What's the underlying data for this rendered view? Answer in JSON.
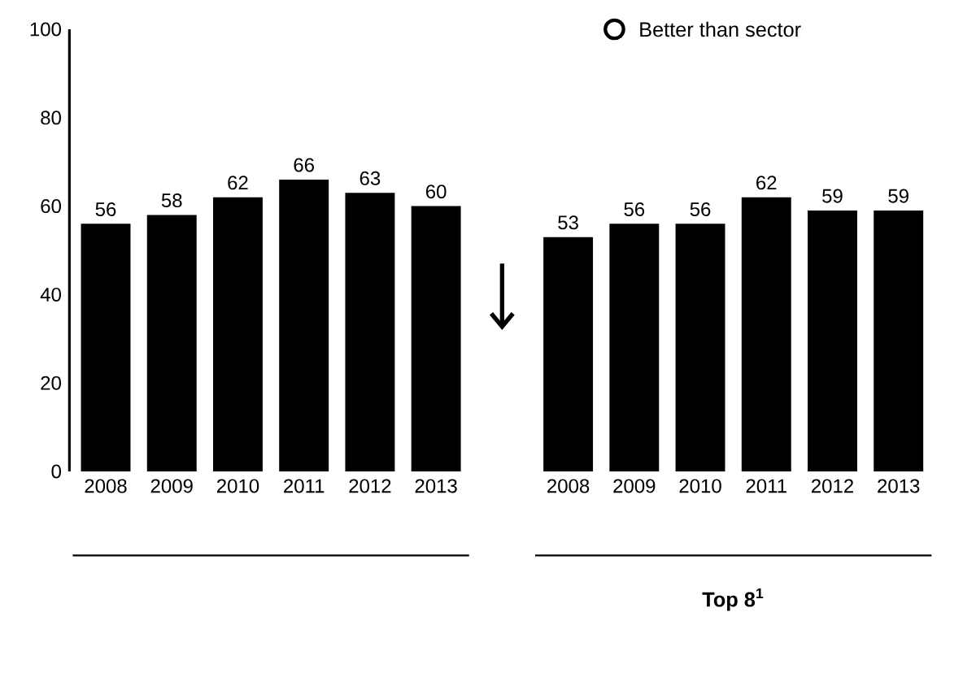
{
  "chart_data": {
    "type": "bar",
    "categories": [
      "2008",
      "2009",
      "2010",
      "2011",
      "2012",
      "2013",
      null,
      "2008",
      "2009",
      "2010",
      "2011",
      "2012",
      "2013"
    ],
    "values": [
      56,
      58,
      62,
      66,
      63,
      60,
      null,
      53,
      56,
      56,
      62,
      59,
      59
    ],
    "color": "#000000",
    "ylim": [
      0,
      100
    ],
    "yticks": [
      0,
      20,
      40,
      60,
      80,
      100
    ],
    "data_labels": true,
    "grid": false,
    "annotations": [
      "Better than sector",
      "Top 8$^{1}$"
    ]
  }
}
